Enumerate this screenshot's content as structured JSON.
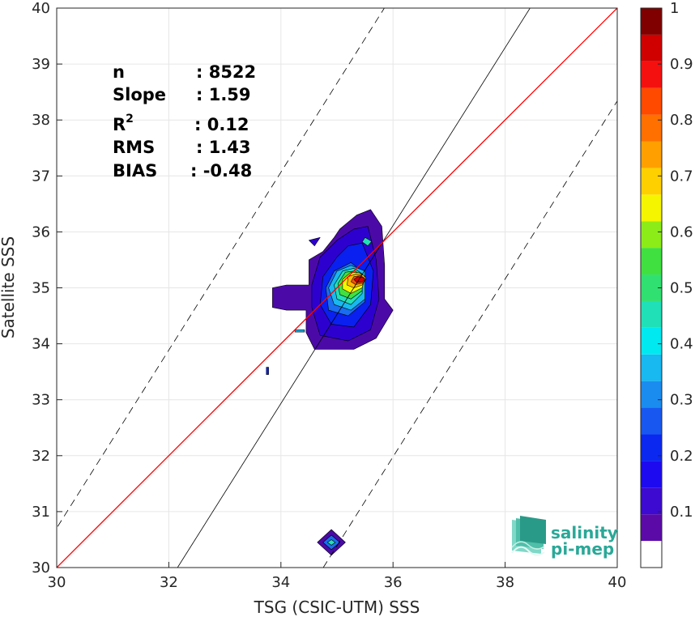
{
  "chart_data": {
    "type": "contour",
    "xlabel": "TSG (CSIC-UTM) SSS",
    "ylabel": "Satellite SSS",
    "xlim": [
      30,
      40
    ],
    "ylim": [
      30,
      40
    ],
    "xticks": [
      "30",
      "32",
      "34",
      "36",
      "38",
      "40"
    ],
    "yticks": [
      "30",
      "31",
      "32",
      "33",
      "34",
      "35",
      "36",
      "37",
      "38",
      "39",
      "40"
    ],
    "grid": true,
    "stats": {
      "labels": [
        "n",
        "Slope",
        "R",
        "RMS",
        "BIAS"
      ],
      "superscript": "2",
      "values": [
        ": 8522",
        ": 1.59",
        ": 0.12",
        ": 1.43",
        ": -0.48"
      ]
    },
    "lines": {
      "identity": {
        "slope": 1,
        "intercept": 0,
        "color": "#ff0000"
      },
      "regression": {
        "slope": 1.59,
        "through": [
          35.3,
          35.0
        ],
        "color": "#000000"
      },
      "envelope": [
        {
          "slope": 1.59,
          "through": [
            32.7,
            35.0
          ],
          "dashed": true
        },
        {
          "slope": 1.59,
          "through": [
            37.9,
            35.0
          ],
          "dashed": true
        }
      ]
    },
    "contours": [
      {
        "level": 0.05,
        "color": "#4b0aa8",
        "points": [
          [
            35.6,
            36.4
          ],
          [
            35.8,
            36.1
          ],
          [
            35.85,
            35.4
          ],
          [
            35.85,
            34.8
          ],
          [
            36.0,
            34.6
          ],
          [
            35.7,
            34.1
          ],
          [
            35.3,
            33.9
          ],
          [
            34.6,
            33.9
          ],
          [
            34.45,
            34.2
          ],
          [
            34.45,
            34.6
          ],
          [
            34.1,
            34.6
          ],
          [
            33.85,
            34.65
          ],
          [
            33.85,
            35.0
          ],
          [
            34.1,
            35.05
          ],
          [
            34.5,
            35.05
          ],
          [
            34.5,
            35.5
          ],
          [
            34.75,
            35.65
          ],
          [
            34.95,
            35.9
          ],
          [
            35.05,
            36.05
          ],
          [
            35.35,
            36.3
          ]
        ]
      },
      {
        "level": 0.1,
        "color": "#2e00d0",
        "points": [
          [
            35.55,
            36.1
          ],
          [
            35.7,
            35.5
          ],
          [
            35.75,
            34.8
          ],
          [
            35.6,
            34.25
          ],
          [
            35.2,
            34.05
          ],
          [
            34.7,
            34.15
          ],
          [
            34.55,
            34.65
          ],
          [
            34.55,
            35.05
          ],
          [
            34.7,
            35.55
          ],
          [
            35.0,
            35.85
          ],
          [
            35.3,
            36.05
          ]
        ]
      },
      {
        "level": 0.15,
        "color": "#0a20f0",
        "points": [
          [
            35.45,
            35.8
          ],
          [
            35.65,
            35.3
          ],
          [
            35.6,
            34.7
          ],
          [
            35.3,
            34.3
          ],
          [
            34.9,
            34.35
          ],
          [
            34.7,
            34.7
          ],
          [
            34.75,
            35.2
          ],
          [
            35.0,
            35.55
          ],
          [
            35.2,
            35.75
          ]
        ]
      },
      {
        "level": 0.25,
        "color": "#1a6cf0",
        "points": [
          [
            35.5,
            35.25
          ],
          [
            35.5,
            34.75
          ],
          [
            35.2,
            34.5
          ],
          [
            34.85,
            34.6
          ],
          [
            34.8,
            35.0
          ],
          [
            34.95,
            35.3
          ],
          [
            35.25,
            35.45
          ]
        ]
      },
      {
        "level": 0.35,
        "color": "#18b8f0",
        "points": [
          [
            35.5,
            35.3
          ],
          [
            35.5,
            34.8
          ],
          [
            35.25,
            34.6
          ],
          [
            34.95,
            34.7
          ],
          [
            34.85,
            35.0
          ],
          [
            35.0,
            35.3
          ],
          [
            35.25,
            35.4
          ]
        ]
      },
      {
        "level": 0.45,
        "color": "#20e0b8",
        "points": [
          [
            35.45,
            35.25
          ],
          [
            35.45,
            34.9
          ],
          [
            35.25,
            34.7
          ],
          [
            35.0,
            34.8
          ],
          [
            34.95,
            35.05
          ],
          [
            35.1,
            35.3
          ],
          [
            35.3,
            35.35
          ]
        ]
      },
      {
        "level": 0.55,
        "color": "#40e040",
        "points": [
          [
            35.45,
            35.22
          ],
          [
            35.45,
            34.95
          ],
          [
            35.25,
            34.8
          ],
          [
            35.05,
            34.88
          ],
          [
            35.02,
            35.08
          ],
          [
            35.15,
            35.28
          ],
          [
            35.32,
            35.3
          ]
        ]
      },
      {
        "level": 0.65,
        "color": "#f5f500",
        "points": [
          [
            35.5,
            35.2
          ],
          [
            35.45,
            35.0
          ],
          [
            35.25,
            34.9
          ],
          [
            35.1,
            34.98
          ],
          [
            35.1,
            35.15
          ],
          [
            35.25,
            35.28
          ],
          [
            35.4,
            35.27
          ]
        ]
      },
      {
        "level": 0.75,
        "color": "#ffb800",
        "points": [
          [
            35.52,
            35.17
          ],
          [
            35.45,
            35.05
          ],
          [
            35.3,
            35.0
          ],
          [
            35.18,
            35.05
          ],
          [
            35.2,
            35.2
          ],
          [
            35.35,
            35.25
          ],
          [
            35.47,
            35.23
          ]
        ]
      },
      {
        "level": 0.85,
        "color": "#ff5000",
        "points": [
          [
            35.52,
            35.15
          ],
          [
            35.45,
            35.08
          ],
          [
            35.33,
            35.06
          ],
          [
            35.25,
            35.11
          ],
          [
            35.3,
            35.2
          ],
          [
            35.42,
            35.22
          ]
        ]
      },
      {
        "level": 0.95,
        "color": "#d00000",
        "points": [
          [
            35.5,
            35.14
          ],
          [
            35.43,
            35.1
          ],
          [
            35.35,
            35.1
          ],
          [
            35.3,
            35.15
          ],
          [
            35.37,
            35.2
          ],
          [
            35.46,
            35.19
          ]
        ]
      },
      {
        "level": 0.05,
        "color": "#4b0aa8",
        "points": [
          [
            34.9,
            30.68
          ],
          [
            35.15,
            30.45
          ],
          [
            34.9,
            30.22
          ],
          [
            34.65,
            30.45
          ]
        ]
      },
      {
        "level": 0.15,
        "color": "#1a6cf0",
        "points": [
          [
            34.9,
            30.58
          ],
          [
            35.05,
            30.45
          ],
          [
            34.9,
            30.32
          ],
          [
            34.75,
            30.45
          ]
        ]
      },
      {
        "level": 0.3,
        "color": "#20e0b8",
        "points": [
          [
            34.9,
            30.5
          ],
          [
            34.97,
            30.45
          ],
          [
            34.9,
            30.4
          ],
          [
            34.83,
            30.45
          ]
        ]
      },
      {
        "level": 0.05,
        "color": "#2e00d0",
        "points": [
          [
            34.5,
            35.85
          ],
          [
            34.7,
            35.9
          ],
          [
            34.6,
            35.75
          ]
        ]
      },
      {
        "level": 0.3,
        "color": "#20e0b8",
        "points": [
          [
            35.5,
            35.9
          ],
          [
            35.62,
            35.83
          ],
          [
            35.55,
            35.75
          ],
          [
            35.45,
            35.82
          ]
        ]
      },
      {
        "level": 0.15,
        "color": "#18b8f0",
        "points": [
          [
            34.25,
            34.25
          ],
          [
            34.42,
            34.25
          ],
          [
            34.42,
            34.21
          ],
          [
            34.25,
            34.21
          ]
        ]
      },
      {
        "level": 0.1,
        "color": "#0a20f0",
        "points": [
          [
            33.74,
            33.58
          ],
          [
            33.78,
            33.58
          ],
          [
            33.78,
            33.45
          ],
          [
            33.74,
            33.45
          ]
        ]
      }
    ],
    "colorbar": {
      "ticks": [
        "0.1",
        "0.2",
        "0.3",
        "0.4",
        "0.5",
        "0.6",
        "0.7",
        "0.8",
        "0.9",
        "1"
      ],
      "tick_values": [
        0.1,
        0.2,
        0.3,
        0.4,
        0.5,
        0.6,
        0.7,
        0.8,
        0.9,
        1.0
      ],
      "range": [
        0,
        1
      ],
      "colors": [
        "#ffffff",
        "#5b0aa8",
        "#3c0ad0",
        "#1e0af0",
        "#0a28f0",
        "#1858f0",
        "#1a8cf0",
        "#18b8f0",
        "#00e8f0",
        "#20e0b8",
        "#30e070",
        "#40e040",
        "#8cec18",
        "#f5f500",
        "#ffd000",
        "#ffa000",
        "#ff7000",
        "#ff4a00",
        "#f51010",
        "#d00000",
        "#800000"
      ]
    }
  },
  "logo": {
    "line1": "salinity",
    "line2": "pi-mep",
    "color": "#2aa898"
  }
}
